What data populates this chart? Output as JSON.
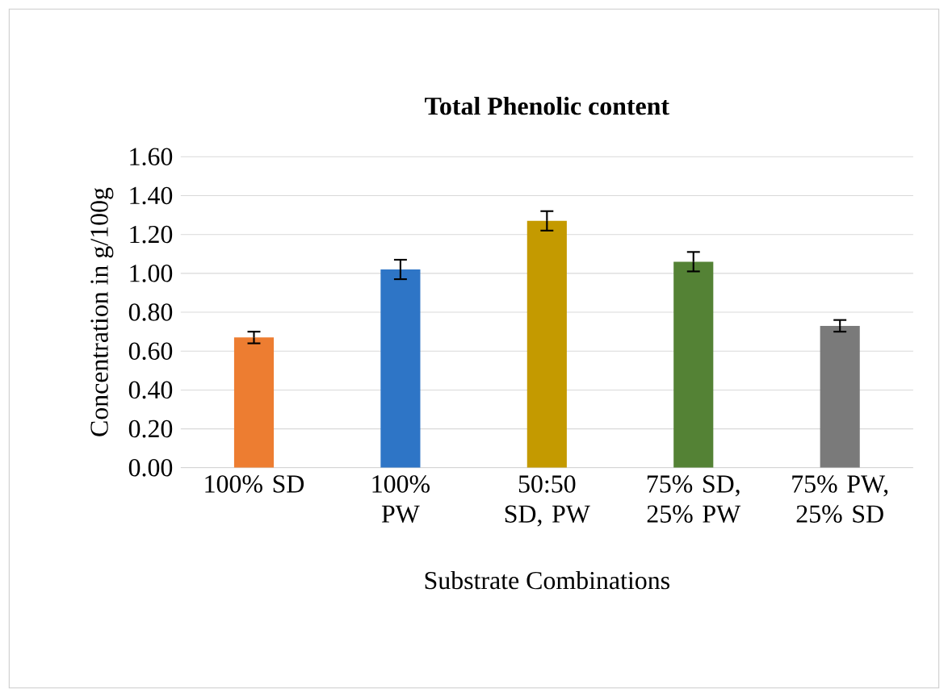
{
  "chart_data": {
    "type": "bar",
    "title": "Total Phenolic content",
    "xlabel": "Substrate Combinations",
    "ylabel": "Concentration in g/100g",
    "categories": [
      "100% SD",
      "100% PW",
      "50:50 SD, PW",
      "75% SD, 25% PW",
      "75% PW, 25% SD"
    ],
    "values": [
      0.67,
      1.02,
      1.27,
      1.06,
      0.73
    ],
    "errors": [
      0.03,
      0.05,
      0.05,
      0.05,
      0.03
    ],
    "colors": [
      "#ed7d31",
      "#2e75c6",
      "#c49a00",
      "#548235",
      "#7a7a7a"
    ],
    "ylim": [
      0,
      1.6
    ],
    "yticks": [
      {
        "value": 0,
        "label": "0.00"
      },
      {
        "value": 0.2,
        "label": "0.20"
      },
      {
        "value": 0.4,
        "label": "0.40"
      },
      {
        "value": 0.6,
        "label": "0.60"
      },
      {
        "value": 0.8,
        "label": "0.80"
      },
      {
        "value": 1.0,
        "label": "1.00"
      },
      {
        "value": 1.2,
        "label": "1.20"
      },
      {
        "value": 1.4,
        "label": "1.40"
      },
      {
        "value": 1.6,
        "label": "1.60"
      }
    ],
    "grid": "y"
  }
}
